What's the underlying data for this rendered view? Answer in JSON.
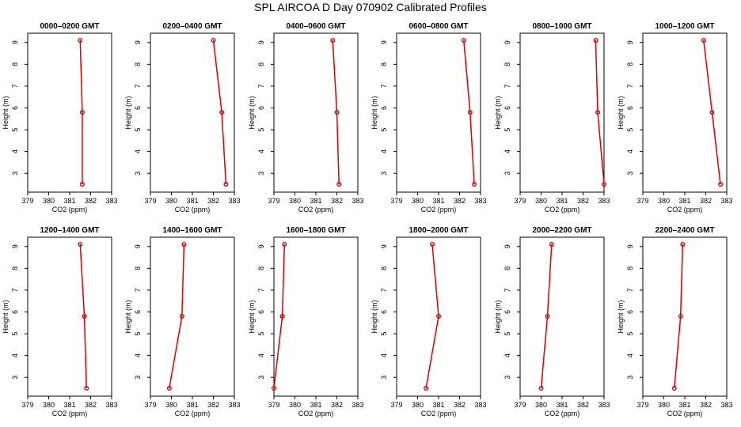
{
  "figure": {
    "title": "SPL AIRCOA D  Day 070902  Calibrated Profiles"
  },
  "chart_data": [
    {
      "type": "line",
      "title": "0000–0200 GMT",
      "xlabel": "CO2 (ppm)",
      "ylabel": "Height (m)",
      "xlim": [
        379,
        383
      ],
      "ylim": [
        2.5,
        9.1
      ],
      "xticks": [
        379,
        380,
        381,
        382,
        383
      ],
      "yticks": [
        3,
        4,
        5,
        6,
        7,
        8,
        9
      ],
      "series": [
        {
          "x": [
            381.5,
            381.6,
            381.6
          ],
          "y": [
            9.1,
            5.8,
            2.5
          ]
        }
      ]
    },
    {
      "type": "line",
      "title": "0200–0400 GMT",
      "xlabel": "CO2 (ppm)",
      "ylabel": "Height (m)",
      "xlim": [
        379,
        383
      ],
      "ylim": [
        2.5,
        9.1
      ],
      "xticks": [
        379,
        380,
        381,
        382,
        383
      ],
      "yticks": [
        3,
        4,
        5,
        6,
        7,
        8,
        9
      ],
      "series": [
        {
          "x": [
            382.0,
            382.4,
            382.6
          ],
          "y": [
            9.1,
            5.8,
            2.5
          ]
        }
      ]
    },
    {
      "type": "line",
      "title": "0400–0600 GMT",
      "xlabel": "CO2 (ppm)",
      "ylabel": "Height (m)",
      "xlim": [
        379,
        383
      ],
      "ylim": [
        2.5,
        9.1
      ],
      "xticks": [
        379,
        380,
        381,
        382,
        383
      ],
      "yticks": [
        3,
        4,
        5,
        6,
        7,
        8,
        9
      ],
      "series": [
        {
          "x": [
            381.8,
            382.0,
            382.1
          ],
          "y": [
            9.1,
            5.8,
            2.5
          ]
        }
      ]
    },
    {
      "type": "line",
      "title": "0600–0800 GMT",
      "xlabel": "CO2 (ppm)",
      "ylabel": "Height (m)",
      "xlim": [
        379,
        383
      ],
      "ylim": [
        2.5,
        9.1
      ],
      "xticks": [
        379,
        380,
        381,
        382,
        383
      ],
      "yticks": [
        3,
        4,
        5,
        6,
        7,
        8,
        9
      ],
      "series": [
        {
          "x": [
            382.2,
            382.5,
            382.7
          ],
          "y": [
            9.1,
            5.8,
            2.5
          ]
        }
      ]
    },
    {
      "type": "line",
      "title": "0800–1000 GMT",
      "xlabel": "CO2 (ppm)",
      "ylabel": "Height (m)",
      "xlim": [
        379,
        383
      ],
      "ylim": [
        2.5,
        9.1
      ],
      "xticks": [
        379,
        380,
        381,
        382,
        383
      ],
      "yticks": [
        3,
        4,
        5,
        6,
        7,
        8,
        9
      ],
      "series": [
        {
          "x": [
            382.6,
            382.7,
            383.0
          ],
          "y": [
            9.1,
            5.8,
            2.5
          ]
        }
      ]
    },
    {
      "type": "line",
      "title": "1000–1200 GMT",
      "xlabel": "CO2 (ppm)",
      "ylabel": "Height (m)",
      "xlim": [
        379,
        383
      ],
      "ylim": [
        2.5,
        9.1
      ],
      "xticks": [
        379,
        380,
        381,
        382,
        383
      ],
      "yticks": [
        3,
        4,
        5,
        6,
        7,
        8,
        9
      ],
      "series": [
        {
          "x": [
            381.9,
            382.3,
            382.7
          ],
          "y": [
            9.1,
            5.8,
            2.5
          ]
        }
      ]
    },
    {
      "type": "line",
      "title": "1200–1400 GMT",
      "xlabel": "CO2 (ppm)",
      "ylabel": "Height (m)",
      "xlim": [
        379,
        383
      ],
      "ylim": [
        2.5,
        9.1
      ],
      "xticks": [
        379,
        380,
        381,
        382,
        383
      ],
      "yticks": [
        3,
        4,
        5,
        6,
        7,
        8,
        9
      ],
      "series": [
        {
          "x": [
            381.5,
            381.7,
            381.8
          ],
          "y": [
            9.1,
            5.8,
            2.5
          ]
        }
      ]
    },
    {
      "type": "line",
      "title": "1400–1600 GMT",
      "xlabel": "CO2 (ppm)",
      "ylabel": "Height (m)",
      "xlim": [
        379,
        383
      ],
      "ylim": [
        2.5,
        9.1
      ],
      "xticks": [
        379,
        380,
        381,
        382,
        383
      ],
      "yticks": [
        3,
        4,
        5,
        6,
        7,
        8,
        9
      ],
      "series": [
        {
          "x": [
            380.6,
            380.5,
            379.9
          ],
          "y": [
            9.1,
            5.8,
            2.5
          ]
        }
      ]
    },
    {
      "type": "line",
      "title": "1600–1800 GMT",
      "xlabel": "CO2 (ppm)",
      "ylabel": "Height (m)",
      "xlim": [
        379,
        383
      ],
      "ylim": [
        2.5,
        9.1
      ],
      "xticks": [
        379,
        380,
        381,
        382,
        383
      ],
      "yticks": [
        3,
        4,
        5,
        6,
        7,
        8,
        9
      ],
      "series": [
        {
          "x": [
            379.5,
            379.4,
            379.0
          ],
          "y": [
            9.1,
            5.8,
            2.5
          ]
        }
      ]
    },
    {
      "type": "line",
      "title": "1800–2000 GMT",
      "xlabel": "CO2 (ppm)",
      "ylabel": "Height (m)",
      "xlim": [
        379,
        383
      ],
      "ylim": [
        2.5,
        9.1
      ],
      "xticks": [
        379,
        380,
        381,
        382,
        383
      ],
      "yticks": [
        3,
        4,
        5,
        6,
        7,
        8,
        9
      ],
      "series": [
        {
          "x": [
            380.7,
            381.0,
            380.4
          ],
          "y": [
            9.1,
            5.8,
            2.5
          ]
        }
      ]
    },
    {
      "type": "line",
      "title": "2000–2200 GMT",
      "xlabel": "CO2 (ppm)",
      "ylabel": "Height (m)",
      "xlim": [
        379,
        383
      ],
      "ylim": [
        2.5,
        9.1
      ],
      "xticks": [
        379,
        380,
        381,
        382,
        383
      ],
      "yticks": [
        3,
        4,
        5,
        6,
        7,
        8,
        9
      ],
      "series": [
        {
          "x": [
            380.5,
            380.3,
            380.0
          ],
          "y": [
            9.1,
            5.8,
            2.5
          ]
        }
      ]
    },
    {
      "type": "line",
      "title": "2200–2400 GMT",
      "xlabel": "CO2 (ppm)",
      "ylabel": "Height (m)",
      "xlim": [
        379,
        383
      ],
      "ylim": [
        2.5,
        9.1
      ],
      "xticks": [
        379,
        380,
        381,
        382,
        383
      ],
      "yticks": [
        3,
        4,
        5,
        6,
        7,
        8,
        9
      ],
      "series": [
        {
          "x": [
            380.9,
            380.8,
            380.5
          ],
          "y": [
            9.1,
            5.8,
            2.5
          ]
        }
      ]
    }
  ]
}
